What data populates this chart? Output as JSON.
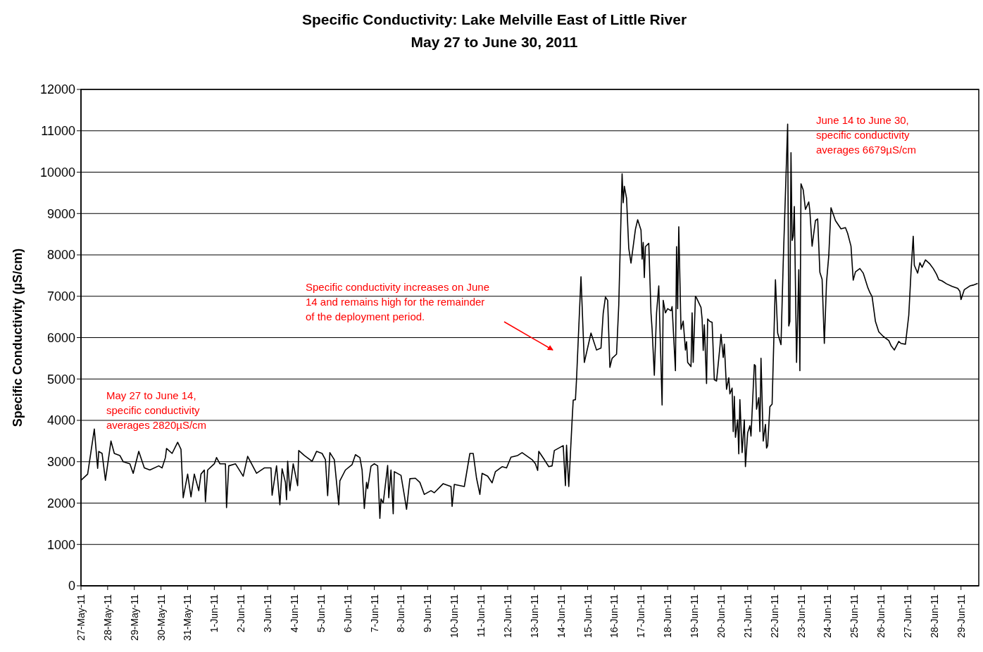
{
  "chart_data": {
    "type": "line",
    "title": "Specific Conductivity: Lake Melville East of Little River",
    "subtitle": "May 27 to June 30, 2011",
    "ylabel": "Specific Conductivity (µS/cm)",
    "annotations": [
      "May 27 to June 14, specific conductivity averages 2820µS/cm",
      "Specific conductivity increases on June 14 and remains high for the remainder of the deployment period.",
      "June 14 to June 30, specific conductivity averages 6679µS/cm"
    ],
    "color": "#000000",
    "marker": "none",
    "line_style": "solid",
    "grid": "y",
    "ylim": [
      0,
      12000
    ],
    "yticks": [
      0,
      1000,
      2000,
      3000,
      4000,
      5000,
      6000,
      7000,
      8000,
      9000,
      10000,
      11000,
      12000
    ],
    "xlim": [
      "2011-05-27T00:00",
      "2011-06-29T16:00"
    ],
    "xticks": [
      {
        "value": "2011-05-27",
        "label": "27-May-11"
      },
      {
        "value": "2011-05-28",
        "label": "28-May-11"
      },
      {
        "value": "2011-05-29",
        "label": "29-May-11"
      },
      {
        "value": "2011-05-30",
        "label": "30-May-11"
      },
      {
        "value": "2011-05-31",
        "label": "31-May-11"
      },
      {
        "value": "2011-06-01",
        "label": "1-Jun-11"
      },
      {
        "value": "2011-06-02",
        "label": "2-Jun-11"
      },
      {
        "value": "2011-06-03",
        "label": "3-Jun-11"
      },
      {
        "value": "2011-06-04",
        "label": "4-Jun-11"
      },
      {
        "value": "2011-06-05",
        "label": "5-Jun-11"
      },
      {
        "value": "2011-06-06",
        "label": "6-Jun-11"
      },
      {
        "value": "2011-06-07",
        "label": "7-Jun-11"
      },
      {
        "value": "2011-06-08",
        "label": "8-Jun-11"
      },
      {
        "value": "2011-06-09",
        "label": "9-Jun-11"
      },
      {
        "value": "2011-06-10",
        "label": "10-Jun-11"
      },
      {
        "value": "2011-06-11",
        "label": "11-Jun-11"
      },
      {
        "value": "2011-06-12",
        "label": "12-Jun-11"
      },
      {
        "value": "2011-06-13",
        "label": "13-Jun-11"
      },
      {
        "value": "2011-06-14",
        "label": "14-Jun-11"
      },
      {
        "value": "2011-06-15",
        "label": "15-Jun-11"
      },
      {
        "value": "2011-06-16",
        "label": "16-Jun-11"
      },
      {
        "value": "2011-06-17",
        "label": "17-Jun-11"
      },
      {
        "value": "2011-06-18",
        "label": "18-Jun-11"
      },
      {
        "value": "2011-06-19",
        "label": "19-Jun-11"
      },
      {
        "value": "2011-06-20",
        "label": "20-Jun-11"
      },
      {
        "value": "2011-06-21",
        "label": "21-Jun-11"
      },
      {
        "value": "2011-06-22",
        "label": "22-Jun-11"
      },
      {
        "value": "2011-06-23",
        "label": "23-Jun-11"
      },
      {
        "value": "2011-06-24",
        "label": "24-Jun-11"
      },
      {
        "value": "2011-06-25",
        "label": "25-Jun-11"
      },
      {
        "value": "2011-06-26",
        "label": "26-Jun-11"
      },
      {
        "value": "2011-06-27",
        "label": "27-Jun-11"
      },
      {
        "value": "2011-06-28",
        "label": "28-Jun-11"
      },
      {
        "value": "2011-06-29",
        "label": "29-Jun-11"
      }
    ],
    "x": [
      "2011-05-27T00:00",
      "2011-05-27T06:00",
      "2011-05-27T12:00",
      "2011-05-27T15:00",
      "2011-05-27T16:00",
      "2011-05-27T19:00",
      "2011-05-27T22:00",
      "2011-05-28T03:00",
      "2011-05-28T06:00",
      "2011-05-28T11:00",
      "2011-05-28T14:00",
      "2011-05-28T20:00",
      "2011-05-28T23:00",
      "2011-05-29T04:00",
      "2011-05-29T09:00",
      "2011-05-29T14:00",
      "2011-05-29T22:00",
      "2011-05-30T01:00",
      "2011-05-30T04:00",
      "2011-05-30T05:00",
      "2011-05-30T10:00",
      "2011-05-30T15:00",
      "2011-05-30T18:00",
      "2011-05-30T20:00",
      "2011-05-31T00:00",
      "2011-05-31T03:00",
      "2011-05-31T06:00",
      "2011-05-31T10:00",
      "2011-05-31T12:00",
      "2011-05-31T15:00",
      "2011-05-31T16:00",
      "2011-05-31T18:00",
      "2011-06-01T00:00",
      "2011-06-01T02:00",
      "2011-06-01T05:00",
      "2011-06-01T10:00",
      "2011-06-01T11:00",
      "2011-06-01T13:00",
      "2011-06-01T19:00",
      "2011-06-02T02:00",
      "2011-06-02T06:00",
      "2011-06-02T14:00",
      "2011-06-02T21:00",
      "2011-06-03T03:00",
      "2011-06-03T04:00",
      "2011-06-03T08:00",
      "2011-06-03T11:00",
      "2011-06-03T13:00",
      "2011-06-03T16:00",
      "2011-06-03T17:00",
      "2011-06-03T18:00",
      "2011-06-03T20:00",
      "2011-06-03T23:00",
      "2011-06-04T03:00",
      "2011-06-04T04:00",
      "2011-06-04T09:00",
      "2011-06-04T16:00",
      "2011-06-04T20:00",
      "2011-06-05T01:00",
      "2011-06-05T04:00",
      "2011-06-05T06:00",
      "2011-06-05T08:00",
      "2011-06-05T12:00",
      "2011-06-05T16:00",
      "2011-06-05T17:00",
      "2011-06-05T22:00",
      "2011-06-06T04:00",
      "2011-06-06T07:00",
      "2011-06-06T11:00",
      "2011-06-06T13:00",
      "2011-06-06T15:00",
      "2011-06-06T17:00",
      "2011-06-06T18:00",
      "2011-06-06T21:00",
      "2011-06-07T00:00",
      "2011-06-07T03:00",
      "2011-06-07T05:00",
      "2011-06-07T06:00",
      "2011-06-07T08:00",
      "2011-06-07T12:00",
      "2011-06-07T13:00",
      "2011-06-07T15:00",
      "2011-06-07T17:00",
      "2011-06-07T18:00",
      "2011-06-08T00:00",
      "2011-06-08T03:00",
      "2011-06-08T05:00",
      "2011-06-08T08:00",
      "2011-06-08T13:00",
      "2011-06-08T17:00",
      "2011-06-08T21:00",
      "2011-06-09T03:00",
      "2011-06-09T06:00",
      "2011-06-09T14:00",
      "2011-06-09T21:00",
      "2011-06-09T22:00",
      "2011-06-10T00:00",
      "2011-06-10T09:00",
      "2011-06-10T14:00",
      "2011-06-10T17:00",
      "2011-06-10T20:00",
      "2011-06-10T23:00",
      "2011-06-11T01:00",
      "2011-06-11T06:00",
      "2011-06-11T10:00",
      "2011-06-11T13:00",
      "2011-06-11T19:00",
      "2011-06-11T23:00",
      "2011-06-12T03:00",
      "2011-06-12T09:00",
      "2011-06-12T13:00",
      "2011-06-12T22:00",
      "2011-06-13T01:00",
      "2011-06-13T03:00",
      "2011-06-13T04:00",
      "2011-06-13T09:00",
      "2011-06-13T13:00",
      "2011-06-13T16:00",
      "2011-06-13T18:00",
      "2011-06-14T02:00",
      "2011-06-14T04:00",
      "2011-06-14T05:00",
      "2011-06-14T07:00",
      "2011-06-14T10:00",
      "2011-06-14T11:00",
      "2011-06-14T13:00",
      "2011-06-14T14:00",
      "2011-06-14T18:00",
      "2011-06-14T21:00",
      "2011-06-15T03:00",
      "2011-06-15T08:00",
      "2011-06-15T12:00",
      "2011-06-15T14:00",
      "2011-06-15T16:00",
      "2011-06-15T18:00",
      "2011-06-15T20:00",
      "2011-06-15T22:00",
      "2011-06-16T02:00",
      "2011-06-16T04:00",
      "2011-06-16T07:00",
      "2011-06-16T08:00",
      "2011-06-16T09:00",
      "2011-06-16T11:00",
      "2011-06-16T13:00",
      "2011-06-16T15:00",
      "2011-06-16T19:00",
      "2011-06-16T21:00",
      "2011-06-17T00:00",
      "2011-06-17T01:00",
      "2011-06-17T02:00",
      "2011-06-17T03:00",
      "2011-06-17T04:00",
      "2011-06-17T07:00",
      "2011-06-17T09:00",
      "2011-06-17T10:00",
      "2011-06-17T12:00",
      "2011-06-17T14:00",
      "2011-06-17T16:00",
      "2011-06-17T19:00",
      "2011-06-17T20:00",
      "2011-06-17T22:00",
      "2011-06-18T00:00",
      "2011-06-18T03:00",
      "2011-06-18T04:00",
      "2011-06-18T07:00",
      "2011-06-18T08:00",
      "2011-06-18T09:00",
      "2011-06-18T10:00",
      "2011-06-18T12:00",
      "2011-06-18T14:00",
      "2011-06-18T16:00",
      "2011-06-18T17:00",
      "2011-06-18T18:00",
      "2011-06-18T21:00",
      "2011-06-18T22:00",
      "2011-06-18T23:00",
      "2011-06-19T01:00",
      "2011-06-19T02:00",
      "2011-06-19T06:00",
      "2011-06-19T07:00",
      "2011-06-19T08:00",
      "2011-06-19T09:00",
      "2011-06-19T11:00",
      "2011-06-19T12:00",
      "2011-06-19T14:00",
      "2011-06-19T16:00",
      "2011-06-19T18:00",
      "2011-06-19T20:00",
      "2011-06-19T23:00",
      "2011-06-20T00:00",
      "2011-06-20T02:00",
      "2011-06-20T03:00",
      "2011-06-20T05:00",
      "2011-06-20T07:00",
      "2011-06-20T08:00",
      "2011-06-20T10:00",
      "2011-06-20T11:00",
      "2011-06-20T12:00",
      "2011-06-20T13:00",
      "2011-06-20T15:00",
      "2011-06-20T16:00",
      "2011-06-20T17:00",
      "2011-06-20T19:00",
      "2011-06-20T21:00",
      "2011-06-20T22:00",
      "2011-06-21T00:00",
      "2011-06-21T02:00",
      "2011-06-21T03:00",
      "2011-06-21T06:00",
      "2011-06-21T07:00",
      "2011-06-21T08:00",
      "2011-06-21T10:00",
      "2011-06-21T11:00",
      "2011-06-21T12:00",
      "2011-06-21T14:00",
      "2011-06-21T16:00",
      "2011-06-21T17:00",
      "2011-06-21T18:00",
      "2011-06-21T20:00",
      "2011-06-21T22:00",
      "2011-06-22T01:00",
      "2011-06-22T03:00",
      "2011-06-22T06:00",
      "2011-06-22T08:00",
      "2011-06-22T12:00",
      "2011-06-22T13:00",
      "2011-06-22T14:00",
      "2011-06-22T15:00",
      "2011-06-22T16:00",
      "2011-06-22T17:00",
      "2011-06-22T18:00",
      "2011-06-22T20:00",
      "2011-06-22T22:00",
      "2011-06-22T23:00",
      "2011-06-23T00:00",
      "2011-06-23T02:00",
      "2011-06-23T04:00",
      "2011-06-23T07:00",
      "2011-06-23T08:00",
      "2011-06-23T10:00",
      "2011-06-23T13:00",
      "2011-06-23T15:00",
      "2011-06-23T17:00",
      "2011-06-23T19:00",
      "2011-06-23T21:00",
      "2011-06-23T23:00",
      "2011-06-24T01:00",
      "2011-06-24T03:00",
      "2011-06-24T07:00",
      "2011-06-24T12:00",
      "2011-06-24T16:00",
      "2011-06-24T18:00",
      "2011-06-24T21:00",
      "2011-06-24T23:00",
      "2011-06-25T01:00",
      "2011-06-25T05:00",
      "2011-06-25T08:00",
      "2011-06-25T12:00",
      "2011-06-25T14:00",
      "2011-06-25T16:00",
      "2011-06-25T19:00",
      "2011-06-25T22:00",
      "2011-06-26T02:00",
      "2011-06-26T07:00",
      "2011-06-26T09:00",
      "2011-06-26T12:00",
      "2011-06-26T16:00",
      "2011-06-26T18:00",
      "2011-06-26T22:00",
      "2011-06-27T01:00",
      "2011-06-27T03:00",
      "2011-06-27T05:00",
      "2011-06-27T06:00",
      "2011-06-27T09:00",
      "2011-06-27T11:00",
      "2011-06-27T13:00",
      "2011-06-27T16:00",
      "2011-06-27T20:00",
      "2011-06-27T23:00",
      "2011-06-28T02:00",
      "2011-06-28T04:00",
      "2011-06-28T07:00",
      "2011-06-28T11:00",
      "2011-06-28T16:00",
      "2011-06-28T21:00",
      "2011-06-28T23:00",
      "2011-06-29T00:00",
      "2011-06-29T03:00",
      "2011-06-29T08:00",
      "2011-06-29T11:00",
      "2011-06-29T15:00"
    ],
    "values": [
      2550,
      2700,
      3790,
      2840,
      3250,
      3200,
      2550,
      3500,
      3200,
      3150,
      3000,
      2950,
      2720,
      3250,
      2850,
      2800,
      2900,
      2850,
      3100,
      3320,
      3200,
      3470,
      3300,
      2130,
      2700,
      2150,
      2700,
      2300,
      2700,
      2800,
      2030,
      2800,
      2950,
      3100,
      2950,
      2950,
      1890,
      2900,
      2950,
      2650,
      3130,
      2720,
      2850,
      2850,
      2190,
      2900,
      1960,
      2830,
      2500,
      2080,
      3010,
      2300,
      2950,
      2420,
      3270,
      3150,
      3010,
      3250,
      3200,
      3050,
      2180,
      3220,
      3050,
      1960,
      2540,
      2800,
      2930,
      3170,
      3100,
      2800,
      1870,
      2500,
      2350,
      2890,
      2950,
      2900,
      1630,
      2100,
      2000,
      2910,
      2130,
      2800,
      1740,
      2760,
      2670,
      2190,
      1850,
      2590,
      2600,
      2500,
      2210,
      2300,
      2250,
      2470,
      2400,
      1920,
      2450,
      2400,
      3200,
      3200,
      2600,
      2210,
      2720,
      2650,
      2490,
      2760,
      2880,
      2850,
      3110,
      3150,
      3220,
      3050,
      2950,
      2790,
      3250,
      3050,
      2880,
      2900,
      3270,
      3390,
      2420,
      3400,
      2400,
      4000,
      4490,
      4500,
      5000,
      7470,
      5400,
      6110,
      5700,
      5750,
      6590,
      6980,
      6900,
      5280,
      5500,
      5600,
      6790,
      9960,
      9260,
      9660,
      9370,
      8160,
      7800,
      8620,
      8850,
      8600,
      7900,
      8300,
      7450,
      8200,
      8280,
      6600,
      6200,
      5090,
      6600,
      7250,
      4370,
      6900,
      6600,
      6700,
      6650,
      6750,
      5200,
      8200,
      6700,
      8680,
      6200,
      6400,
      5700,
      5900,
      5400,
      5300,
      6600,
      5400,
      7000,
      6960,
      6730,
      6450,
      5690,
      6310,
      4890,
      6450,
      6390,
      6370,
      4980,
      4950,
      5770,
      6080,
      5520,
      5840,
      4750,
      5030,
      4640,
      4780,
      3730,
      4580,
      3590,
      4010,
      3190,
      4500,
      3220,
      4010,
      2880,
      3700,
      3870,
      3620,
      5350,
      5320,
      4270,
      4550,
      3730,
      5500,
      3500,
      3900,
      3330,
      3390,
      4330,
      4390,
      7400,
      6110,
      5830,
      7810,
      11160,
      6280,
      6390,
      10470,
      8350,
      8460,
      9170,
      5400,
      7640,
      5200,
      9720,
      9570,
      9100,
      9280,
      9060,
      8210,
      8830,
      8870,
      7580,
      7410,
      5860,
      7350,
      7980,
      9140,
      8830,
      8630,
      8660,
      8520,
      8210,
      7390,
      7590,
      7670,
      7560,
      7220,
      7090,
      6990,
      6390,
      6140,
      6030,
      5930,
      5810,
      5700,
      5910,
      5860,
      5840,
      6540,
      7580,
      8450,
      7750,
      7560,
      7810,
      7700,
      7880,
      7780,
      7670,
      7530,
      7400,
      7370,
      7300,
      7240,
      7190,
      7120,
      6920,
      7160,
      7250,
      7270,
      7310
    ]
  }
}
